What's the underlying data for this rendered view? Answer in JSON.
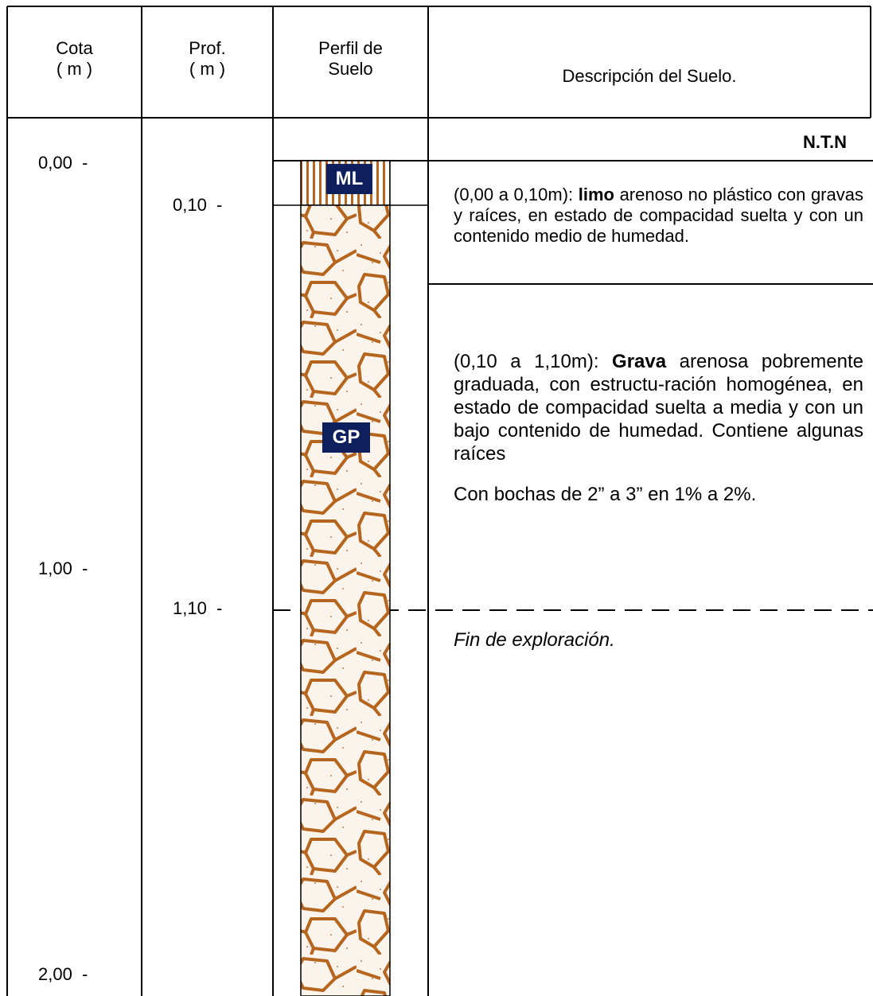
{
  "header": {
    "cota": "Cota",
    "cota_unit": "( m )",
    "prof": "Prof.",
    "prof_unit": "( m )",
    "perfil": "Perfil de",
    "perfil_2": "Suelo",
    "descripcion": "Descripción del Suelo."
  },
  "surface_label": "N.T.N",
  "cotas": [
    "0,00  -",
    "1,00  -",
    "2,00  -"
  ],
  "profundidades": [
    "0,10  -",
    "1,10  -"
  ],
  "layers": [
    {
      "code": "ML",
      "range": "(0,00 a 0,10m):",
      "bold": "limo",
      "text": "arenoso no plástico con gravas y raíces, en estado de compacidad suelta y con un contenido medio de humedad."
    },
    {
      "code": "GP",
      "range": "(0,10 a 1,10m):",
      "bold": "Grava",
      "text": "arenosa pobremente graduada, con estructu-ración homogénea, en estado de compacidad suelta a media y con un bajo contenido de humedad. Contiene algunas raíces",
      "note": "Con bochas de 2” a 3” en 1% a 2%."
    }
  ],
  "end_note": "Fin de exploración."
}
